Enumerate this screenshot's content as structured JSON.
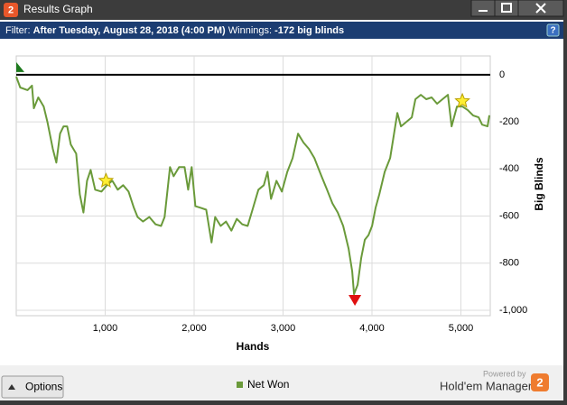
{
  "window": {
    "title": "Results Graph",
    "icon": "2",
    "filter_label": "Filter:",
    "filter_value": "After Tuesday, August 28, 2018 (4:00 PM)",
    "winnings_label": "Winnings:",
    "winnings_value": "-172 big blinds",
    "options": "Options",
    "powered_by": "Powered by",
    "brand": "Hold'em Manager",
    "brand_logo": "2"
  },
  "chart_data": {
    "type": "line",
    "x_label": "Hands",
    "y_label": "Big Blinds",
    "xlim": [
      0,
      5330
    ],
    "ylim": [
      -1023,
      80
    ],
    "xticks": [
      {
        "value": 1000,
        "label": "1,000"
      },
      {
        "value": 2000,
        "label": "2,000"
      },
      {
        "value": 3000,
        "label": "3,000"
      },
      {
        "value": 4000,
        "label": "4,000"
      },
      {
        "value": 5000,
        "label": "5,000"
      }
    ],
    "yticks": [
      0,
      -200,
      -400,
      -600,
      -800,
      {
        "value": -1000,
        "label": "-1,000"
      }
    ],
    "grid": true,
    "x": [
      0,
      45,
      127,
      177,
      198,
      248,
      309,
      350,
      411,
      451,
      492,
      532,
      573,
      613,
      674,
      715,
      755,
      796,
      837,
      887,
      958,
      1019,
      1080,
      1141,
      1202,
      1263,
      1323,
      1364,
      1425,
      1496,
      1567,
      1628,
      1668,
      1729,
      1770,
      1831,
      1892,
      1933,
      1973,
      2014,
      2075,
      2136,
      2196,
      2237,
      2298,
      2358,
      2419,
      2480,
      2541,
      2602,
      2663,
      2723,
      2784,
      2825,
      2865,
      2926,
      2987,
      3048,
      3108,
      3169,
      3230,
      3291,
      3352,
      3392,
      3433,
      3494,
      3555,
      3615,
      3676,
      3737,
      3778,
      3798,
      3839,
      3879,
      3920,
      3960,
      4001,
      4041,
      4082,
      4143,
      4204,
      4245,
      4285,
      4326,
      4387,
      4448,
      4488,
      4549,
      4610,
      4671,
      4732,
      4793,
      4854,
      4895,
      4955,
      5016,
      5077,
      5138,
      5199,
      5239,
      5300,
      5320
    ],
    "series": [
      {
        "name": "Net Won",
        "color": "#6a9a3a",
        "values": [
          -8,
          -54,
          -65,
          -46,
          -142,
          -96,
          -135,
          -200,
          -315,
          -373,
          -250,
          -219,
          -219,
          -296,
          -335,
          -508,
          -585,
          -450,
          -404,
          -488,
          -496,
          -469,
          -450,
          -488,
          -469,
          -496,
          -565,
          -604,
          -623,
          -604,
          -635,
          -642,
          -604,
          -392,
          -431,
          -392,
          -392,
          -488,
          -392,
          -558,
          -565,
          -573,
          -712,
          -604,
          -642,
          -623,
          -662,
          -612,
          -635,
          -642,
          -565,
          -488,
          -469,
          -412,
          -527,
          -450,
          -496,
          -412,
          -354,
          -250,
          -288,
          -315,
          -354,
          -392,
          -431,
          -488,
          -546,
          -585,
          -642,
          -738,
          -835,
          -931,
          -892,
          -777,
          -700,
          -681,
          -642,
          -565,
          -508,
          -412,
          -354,
          -258,
          -162,
          -219,
          -200,
          -181,
          -104,
          -85,
          -104,
          -96,
          -123,
          -104,
          -85,
          -219,
          -135,
          -135,
          -150,
          -173,
          -181,
          -212,
          -219,
          -172
        ]
      }
    ],
    "markers": [
      {
        "x": 0,
        "y": 0,
        "shape": "flag",
        "color": "#1e7a1e"
      },
      {
        "x": 1009,
        "y": -450,
        "shape": "star",
        "color": "#ffee33"
      },
      {
        "x": 5016,
        "y": -112,
        "shape": "star",
        "color": "#ffee33"
      },
      {
        "x": 3808,
        "y": -958,
        "shape": "triangle-down",
        "color": "#e01010"
      }
    ],
    "zero_line": 0,
    "zero_line_color": "#000000"
  }
}
